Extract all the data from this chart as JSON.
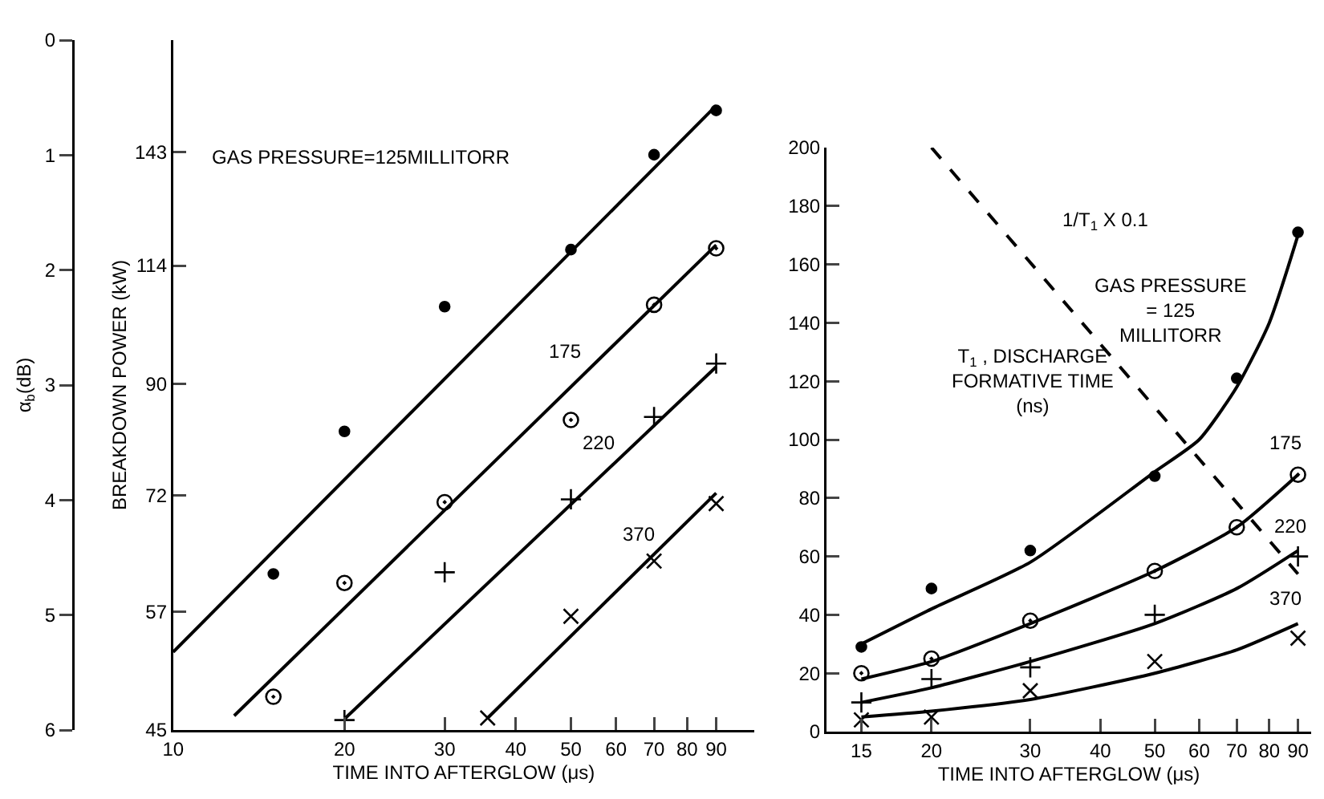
{
  "chart_data": [
    {
      "type": "scatter",
      "xlabel": "TIME INTO AFTERGLOW (μs)",
      "ylabel": "BREAKDOWN POWER (kW)",
      "y2label": "α$_{b}$(dB)",
      "log": "xy",
      "xlim": [
        10,
        105
      ],
      "xticks": [
        10,
        20,
        30,
        40,
        50,
        60,
        70,
        80,
        90
      ],
      "ylim": [
        45,
        179
      ],
      "yticks": [
        45,
        57,
        72,
        90,
        114,
        143
      ],
      "y2lim": [
        6,
        0
      ],
      "y2ticks": [
        0,
        1,
        2,
        3,
        4,
        5,
        6
      ],
      "grid": false,
      "legend": false,
      "annotations": [
        "GAS PRESSURE=125MILLITORR"
      ],
      "series": [
        {
          "type": "scatter",
          "marker": "circle",
          "color": "#000000",
          "x": [
            15,
            20,
            30,
            50,
            70,
            90
          ],
          "values": [
            61.5,
            81.8,
            105,
            117.7,
            142.3,
            155.5
          ]
        },
        {
          "type": "scatter",
          "marker": "circle-dot",
          "color": "#000000",
          "x": [
            15,
            20,
            30,
            50,
            70,
            90
          ],
          "values": [
            48.1,
            60.4,
            71,
            83.7,
            105.4,
            118
          ]
        },
        {
          "type": "scatter",
          "marker": "cross",
          "color": "#000000",
          "x": [
            20,
            30,
            50,
            70,
            90
          ],
          "values": [
            45.9,
            61.7,
            71.4,
            84.2,
            93.7
          ]
        },
        {
          "type": "scatter",
          "marker": "x",
          "color": "#000000",
          "x": [
            35.7,
            50,
            70,
            90
          ],
          "values": [
            46.1,
            56.5,
            63.1,
            70.8
          ]
        },
        {
          "type": "line",
          "marker": "none",
          "line_style": "solid",
          "color": "#000000",
          "x": [
            10,
            90
          ],
          "values": [
            52.6,
            157
          ]
        },
        {
          "type": "line",
          "name": "175",
          "marker": "none",
          "line_style": "solid",
          "color": "#000000",
          "x": [
            12.8,
            90
          ],
          "values": [
            46.3,
            118.8
          ]
        },
        {
          "type": "line",
          "name": "220",
          "marker": "none",
          "line_style": "solid",
          "color": "#000000",
          "x": [
            20,
            90
          ],
          "values": [
            46,
            93.1
          ]
        },
        {
          "type": "line",
          "name": "370",
          "marker": "none",
          "line_style": "solid",
          "color": "#000000",
          "x": [
            35.7,
            90
          ],
          "values": [
            46.1,
            72.3
          ]
        }
      ]
    },
    {
      "type": "scatter",
      "xlabel": "TIME INTO AFTERGLOW (μs)",
      "ylabel": "T$_{1}$ , DISCHARGE\nFORMATIVE TIME\n(ns)",
      "log": "x",
      "xlim": [
        13,
        95
      ],
      "xticks": [
        15,
        20,
        30,
        40,
        50,
        60,
        70,
        80,
        90
      ],
      "ylim": [
        0,
        200
      ],
      "yticks": [
        0,
        20,
        40,
        60,
        80,
        100,
        120,
        140,
        160,
        180,
        200
      ],
      "grid": false,
      "legend": false,
      "annotations": [
        "GAS PRESSURE\n= 125\nMILLITORR"
      ],
      "series": [
        {
          "type": "scatter",
          "marker": "circle",
          "color": "#000000",
          "x": [
            15,
            20,
            30,
            50,
            70,
            90
          ],
          "values": [
            29,
            49,
            62,
            87.5,
            121,
            171
          ]
        },
        {
          "type": "scatter",
          "marker": "circle-dot",
          "color": "#000000",
          "x": [
            15,
            20,
            30,
            50,
            70,
            90
          ],
          "values": [
            20,
            25,
            38,
            55,
            70,
            88
          ]
        },
        {
          "type": "scatter",
          "marker": "cross",
          "color": "#000000",
          "x": [
            15,
            20,
            30,
            50,
            90
          ],
          "values": [
            10,
            18,
            22,
            40,
            60
          ]
        },
        {
          "type": "scatter",
          "marker": "x",
          "color": "#000000",
          "x": [
            15,
            20,
            30,
            50,
            90
          ],
          "values": [
            4,
            5,
            14,
            24,
            32
          ]
        },
        {
          "type": "line",
          "marker": "none",
          "line_style": "solid",
          "color": "#000000",
          "x": [
            15,
            20,
            30,
            50,
            60,
            70,
            80,
            90
          ],
          "values": [
            30,
            42,
            58,
            89,
            100,
            118,
            140,
            170
          ]
        },
        {
          "type": "line",
          "name": "175",
          "marker": "none",
          "line_style": "solid",
          "color": "#000000",
          "x": [
            15,
            20,
            30,
            50,
            70,
            90
          ],
          "values": [
            18,
            24,
            37,
            55,
            70,
            88
          ]
        },
        {
          "type": "line",
          "name": "220",
          "marker": "none",
          "line_style": "solid",
          "color": "#000000",
          "x": [
            15,
            20,
            30,
            50,
            70,
            90
          ],
          "values": [
            10,
            15,
            24,
            37,
            49,
            62
          ]
        },
        {
          "type": "line",
          "name": "370",
          "marker": "none",
          "line_style": "solid",
          "color": "#000000",
          "x": [
            15,
            20,
            30,
            50,
            70,
            90
          ],
          "values": [
            5,
            7,
            11,
            20,
            28,
            37
          ]
        },
        {
          "type": "line",
          "name": "1/T$_{1}$ X 0.1",
          "marker": "none",
          "line_style": "dashed",
          "color": "#000000",
          "x": [
            20,
            90
          ],
          "values": [
            200,
            54
          ]
        }
      ]
    }
  ]
}
